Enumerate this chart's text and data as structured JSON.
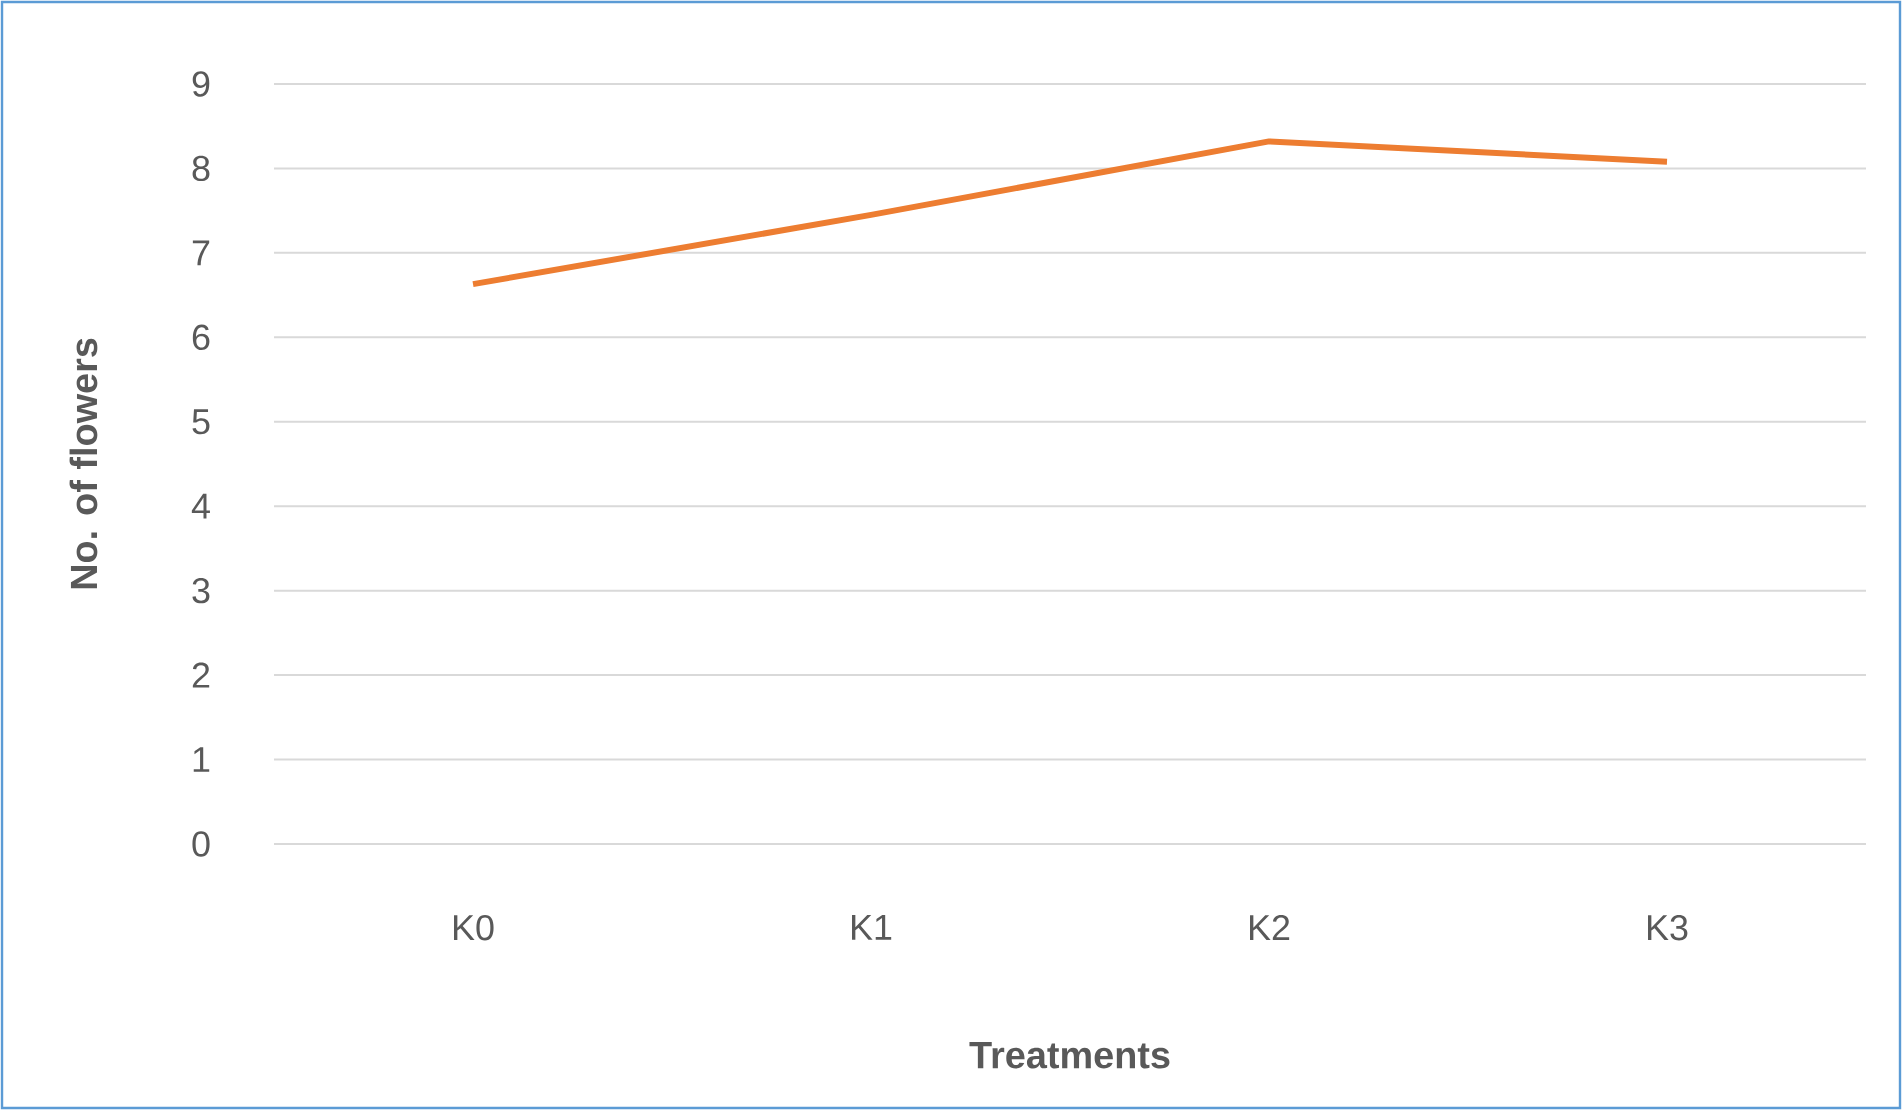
{
  "chart_data": {
    "type": "line",
    "xlabel": "Treatments",
    "ylabel": "No. of flowers",
    "categories": [
      "K0",
      "K1",
      "K2",
      "K3"
    ],
    "series": [
      {
        "color": "#ed7d31",
        "values": [
          6.63,
          7.45,
          8.32,
          8.08
        ]
      }
    ],
    "ylim": [
      0,
      9
    ],
    "yticks": [
      0,
      1,
      2,
      3,
      4,
      5,
      6,
      7,
      8,
      9
    ],
    "grid": "y",
    "marker": "none",
    "line_style": "solid"
  }
}
